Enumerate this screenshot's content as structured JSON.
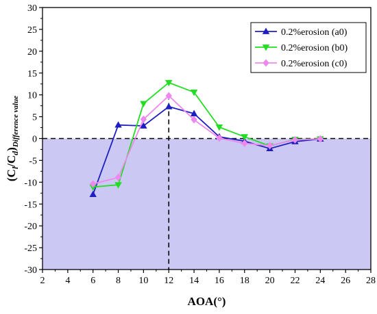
{
  "chart_data": {
    "type": "line",
    "title": "",
    "xlabel": "AOA(°)",
    "ylabel": {
      "main": "(C",
      "sub1": "l",
      "mid": "/C",
      "sub2": "d",
      "close": ")",
      "subscript": "Difference value"
    },
    "xlim": [
      2,
      28
    ],
    "ylim": [
      -30,
      30
    ],
    "xticks": [
      "2",
      "4",
      "6",
      "8",
      "10",
      "12",
      "14",
      "16",
      "18",
      "20",
      "22",
      "24",
      "26",
      "28"
    ],
    "yticks": [
      "-30",
      "-25",
      "-20",
      "-15",
      "-10",
      "-5",
      "0",
      "5",
      "10",
      "15",
      "20",
      "25",
      "30"
    ],
    "grid": false,
    "legend_position": "top-right",
    "shaded_region": {
      "y_from": -30,
      "y_to": 0,
      "color": "#cbc8f4"
    },
    "reference_lines": {
      "horizontal_y": 0,
      "vertical_x": 12
    },
    "series": [
      {
        "name": "0.2%erosion (a0)",
        "color": "#1f1fbf",
        "marker": "triangle-up",
        "points": [
          [
            6,
            -12.8
          ],
          [
            8,
            3.1
          ],
          [
            10,
            2.9
          ],
          [
            12,
            7.3
          ],
          [
            14,
            5.7
          ],
          [
            16,
            0.4
          ],
          [
            18,
            -0.6
          ],
          [
            20,
            -2.3
          ],
          [
            22,
            -0.7
          ],
          [
            24,
            -0.1
          ]
        ]
      },
      {
        "name": "0.2%erosion (b0)",
        "color": "#22dd22",
        "marker": "triangle-down",
        "points": [
          [
            6,
            -11.1
          ],
          [
            8,
            -10.6
          ],
          [
            10,
            8.0
          ],
          [
            12,
            12.8
          ],
          [
            14,
            10.6
          ],
          [
            16,
            2.6
          ],
          [
            18,
            0.4
          ],
          [
            20,
            -1.7
          ],
          [
            22,
            -0.2
          ],
          [
            24,
            -0.1
          ]
        ]
      },
      {
        "name": "0.2%erosion (c0)",
        "color": "#ee88ee",
        "marker": "diamond",
        "points": [
          [
            6,
            -10.4
          ],
          [
            8,
            -8.9
          ],
          [
            10,
            4.4
          ],
          [
            12,
            9.8
          ],
          [
            14,
            4.3
          ],
          [
            16,
            0.1
          ],
          [
            18,
            -1.1
          ],
          [
            20,
            -1.6
          ],
          [
            22,
            -0.3
          ],
          [
            24,
            -0.1
          ]
        ]
      }
    ]
  }
}
